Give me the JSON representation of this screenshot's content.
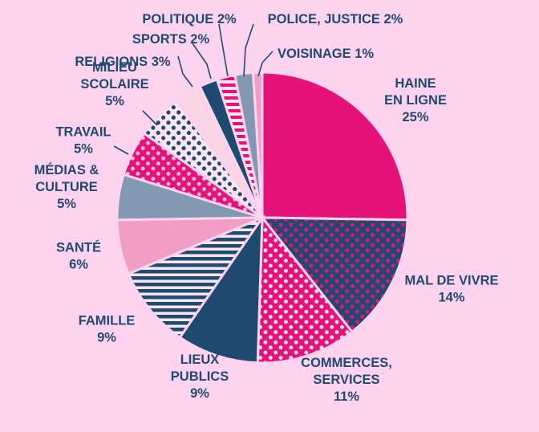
{
  "chart_data": {
    "type": "pie",
    "title": "",
    "slices": [
      {
        "label": [
          "HAINE",
          "EN LIGNE",
          "25%"
        ],
        "category": "HAINE EN LIGNE",
        "value": 25,
        "color": "#e5127a",
        "fill": "solid-magenta"
      },
      {
        "label": [
          "MAL DE VIVRE",
          "14%"
        ],
        "category": "MAL DE VIVRE",
        "value": 14,
        "color": "#1f4a70",
        "fill": "dots-magenta-on-navy"
      },
      {
        "label": [
          "COMMERCES,",
          "SERVICES",
          "11%"
        ],
        "category": "COMMERCES, SERVICES",
        "value": 11,
        "color": "#e5127a",
        "fill": "dots-white-on-magenta"
      },
      {
        "label": [
          "LIEUX",
          "PUBLICS",
          "9%"
        ],
        "category": "LIEUX PUBLICS",
        "value": 9,
        "color": "#1f4a70",
        "fill": "solid-navy"
      },
      {
        "label": [
          "FAMILLE",
          "9%"
        ],
        "category": "FAMILLE",
        "value": 9,
        "color": "#1f4a70",
        "fill": "stripes-navy-on-white"
      },
      {
        "label": [
          "SANTÉ",
          "6%"
        ],
        "category": "SANTÉ",
        "value": 6,
        "color": "#f19ec6",
        "fill": "solid-pink"
      },
      {
        "label": [
          "MÉDIAS &",
          "CULTURE",
          "5%"
        ],
        "category": "MÉDIAS & CULTURE",
        "value": 5,
        "color": "#8399b3",
        "fill": "solid-grey-blue"
      },
      {
        "label": [
          "TRAVAIL",
          "5%"
        ],
        "category": "TRAVAIL",
        "value": 5,
        "color": "#e5127a",
        "fill": "dots-pink-on-magenta"
      },
      {
        "label": [
          "MILIEU",
          "SCOLAIRE",
          "5%"
        ],
        "category": "MILIEU SCOLAIRE",
        "value": 5,
        "color": "#1f4a70",
        "fill": "dots-navy-on-white"
      },
      {
        "label": [
          "RELIGIONS 3%"
        ],
        "category": "RELIGIONS",
        "value": 3,
        "color": "#f8d4e4",
        "fill": "solid-light-pink"
      },
      {
        "label": [
          "SPORTS 2%"
        ],
        "category": "SPORTS",
        "value": 2,
        "color": "#1f4a70",
        "fill": "solid-navy"
      },
      {
        "label": [
          "POLITIQUE 2%"
        ],
        "category": "POLITIQUE",
        "value": 2,
        "color": "#e5127a",
        "fill": "stripes-magenta-on-white"
      },
      {
        "label": [
          "POLICE, JUSTICE 2%"
        ],
        "category": "POLICE, JUSTICE",
        "value": 2,
        "color": "#8399b3",
        "fill": "solid-grey-blue"
      },
      {
        "label": [
          "VOISINAGE 1%"
        ],
        "category": "VOISINAGE",
        "value": 1,
        "color": "#f19ec6",
        "fill": "solid-pink"
      }
    ],
    "start": "12 o'clock",
    "direction": "clockwise",
    "legend": "none",
    "colors": {
      "background": "#fdd3ee",
      "text": "#1f4a70"
    }
  }
}
